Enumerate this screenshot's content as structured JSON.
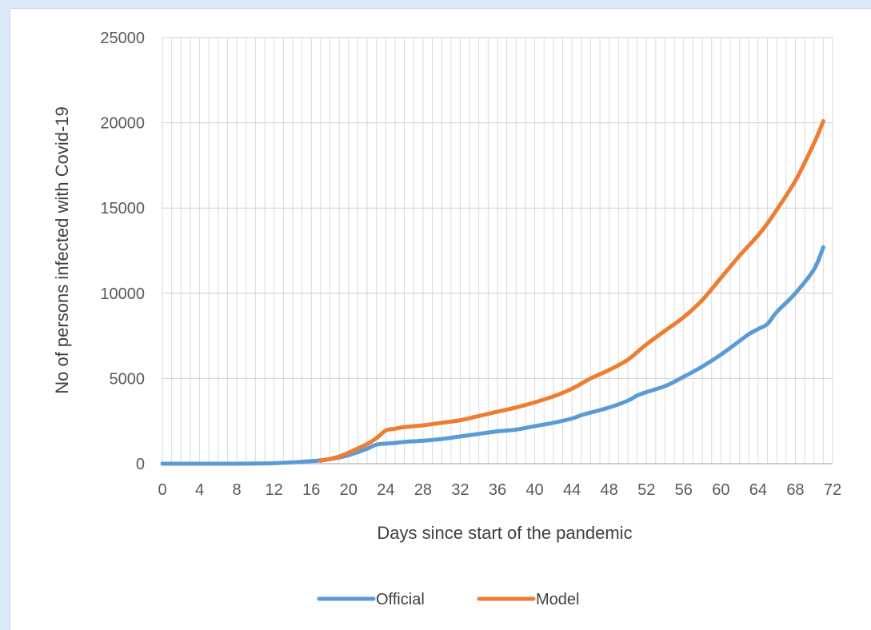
{
  "chart_data": {
    "type": "line",
    "title": "",
    "xlabel": "Days since start of the pandemic",
    "ylabel": "No of persons infected with Covid-19",
    "xlim": [
      0,
      72
    ],
    "ylim": [
      0,
      25000
    ],
    "x_ticks": [
      "0",
      "4",
      "8",
      "12",
      "16",
      "20",
      "24",
      "28",
      "32",
      "36",
      "40",
      "44",
      "48",
      "52",
      "56",
      "60",
      "64",
      "68",
      "72"
    ],
    "y_ticks": [
      "0",
      "5000",
      "10000",
      "15000",
      "20000",
      "25000"
    ],
    "grid": true,
    "legend_position": "bottom",
    "series": [
      {
        "name": "Official",
        "color": "#5b9bd5",
        "x": [
          0,
          4,
          8,
          10,
          12,
          14,
          16,
          17,
          18,
          19,
          20,
          21,
          22,
          23,
          24,
          25,
          26,
          28,
          30,
          32,
          34,
          36,
          38,
          40,
          42,
          44,
          45,
          46,
          48,
          50,
          51,
          52,
          54,
          56,
          58,
          60,
          62,
          63,
          64,
          65,
          66,
          68,
          70,
          71
        ],
        "values": [
          0,
          0,
          0,
          10,
          30,
          80,
          150,
          200,
          270,
          360,
          500,
          680,
          880,
          1120,
          1180,
          1220,
          1280,
          1350,
          1450,
          1600,
          1750,
          1900,
          2000,
          2200,
          2400,
          2650,
          2850,
          3000,
          3300,
          3700,
          4000,
          4200,
          4550,
          5100,
          5700,
          6400,
          7200,
          7600,
          7900,
          8200,
          8900,
          10000,
          11400,
          12700
        ]
      },
      {
        "name": "Model",
        "color": "#ed7d31",
        "x": [
          17,
          18,
          19,
          20,
          21,
          22,
          23,
          24,
          25,
          26,
          28,
          30,
          32,
          34,
          36,
          38,
          40,
          42,
          44,
          46,
          48,
          50,
          52,
          54,
          56,
          58,
          60,
          62,
          64,
          65,
          66,
          68,
          70,
          71
        ],
        "values": [
          170,
          280,
          420,
          650,
          900,
          1150,
          1500,
          1950,
          2050,
          2150,
          2250,
          2400,
          2550,
          2800,
          3050,
          3300,
          3600,
          3950,
          4400,
          5000,
          5500,
          6100,
          7000,
          7800,
          8600,
          9600,
          10900,
          12200,
          13400,
          14100,
          14900,
          16600,
          18800,
          20100
        ]
      }
    ]
  }
}
